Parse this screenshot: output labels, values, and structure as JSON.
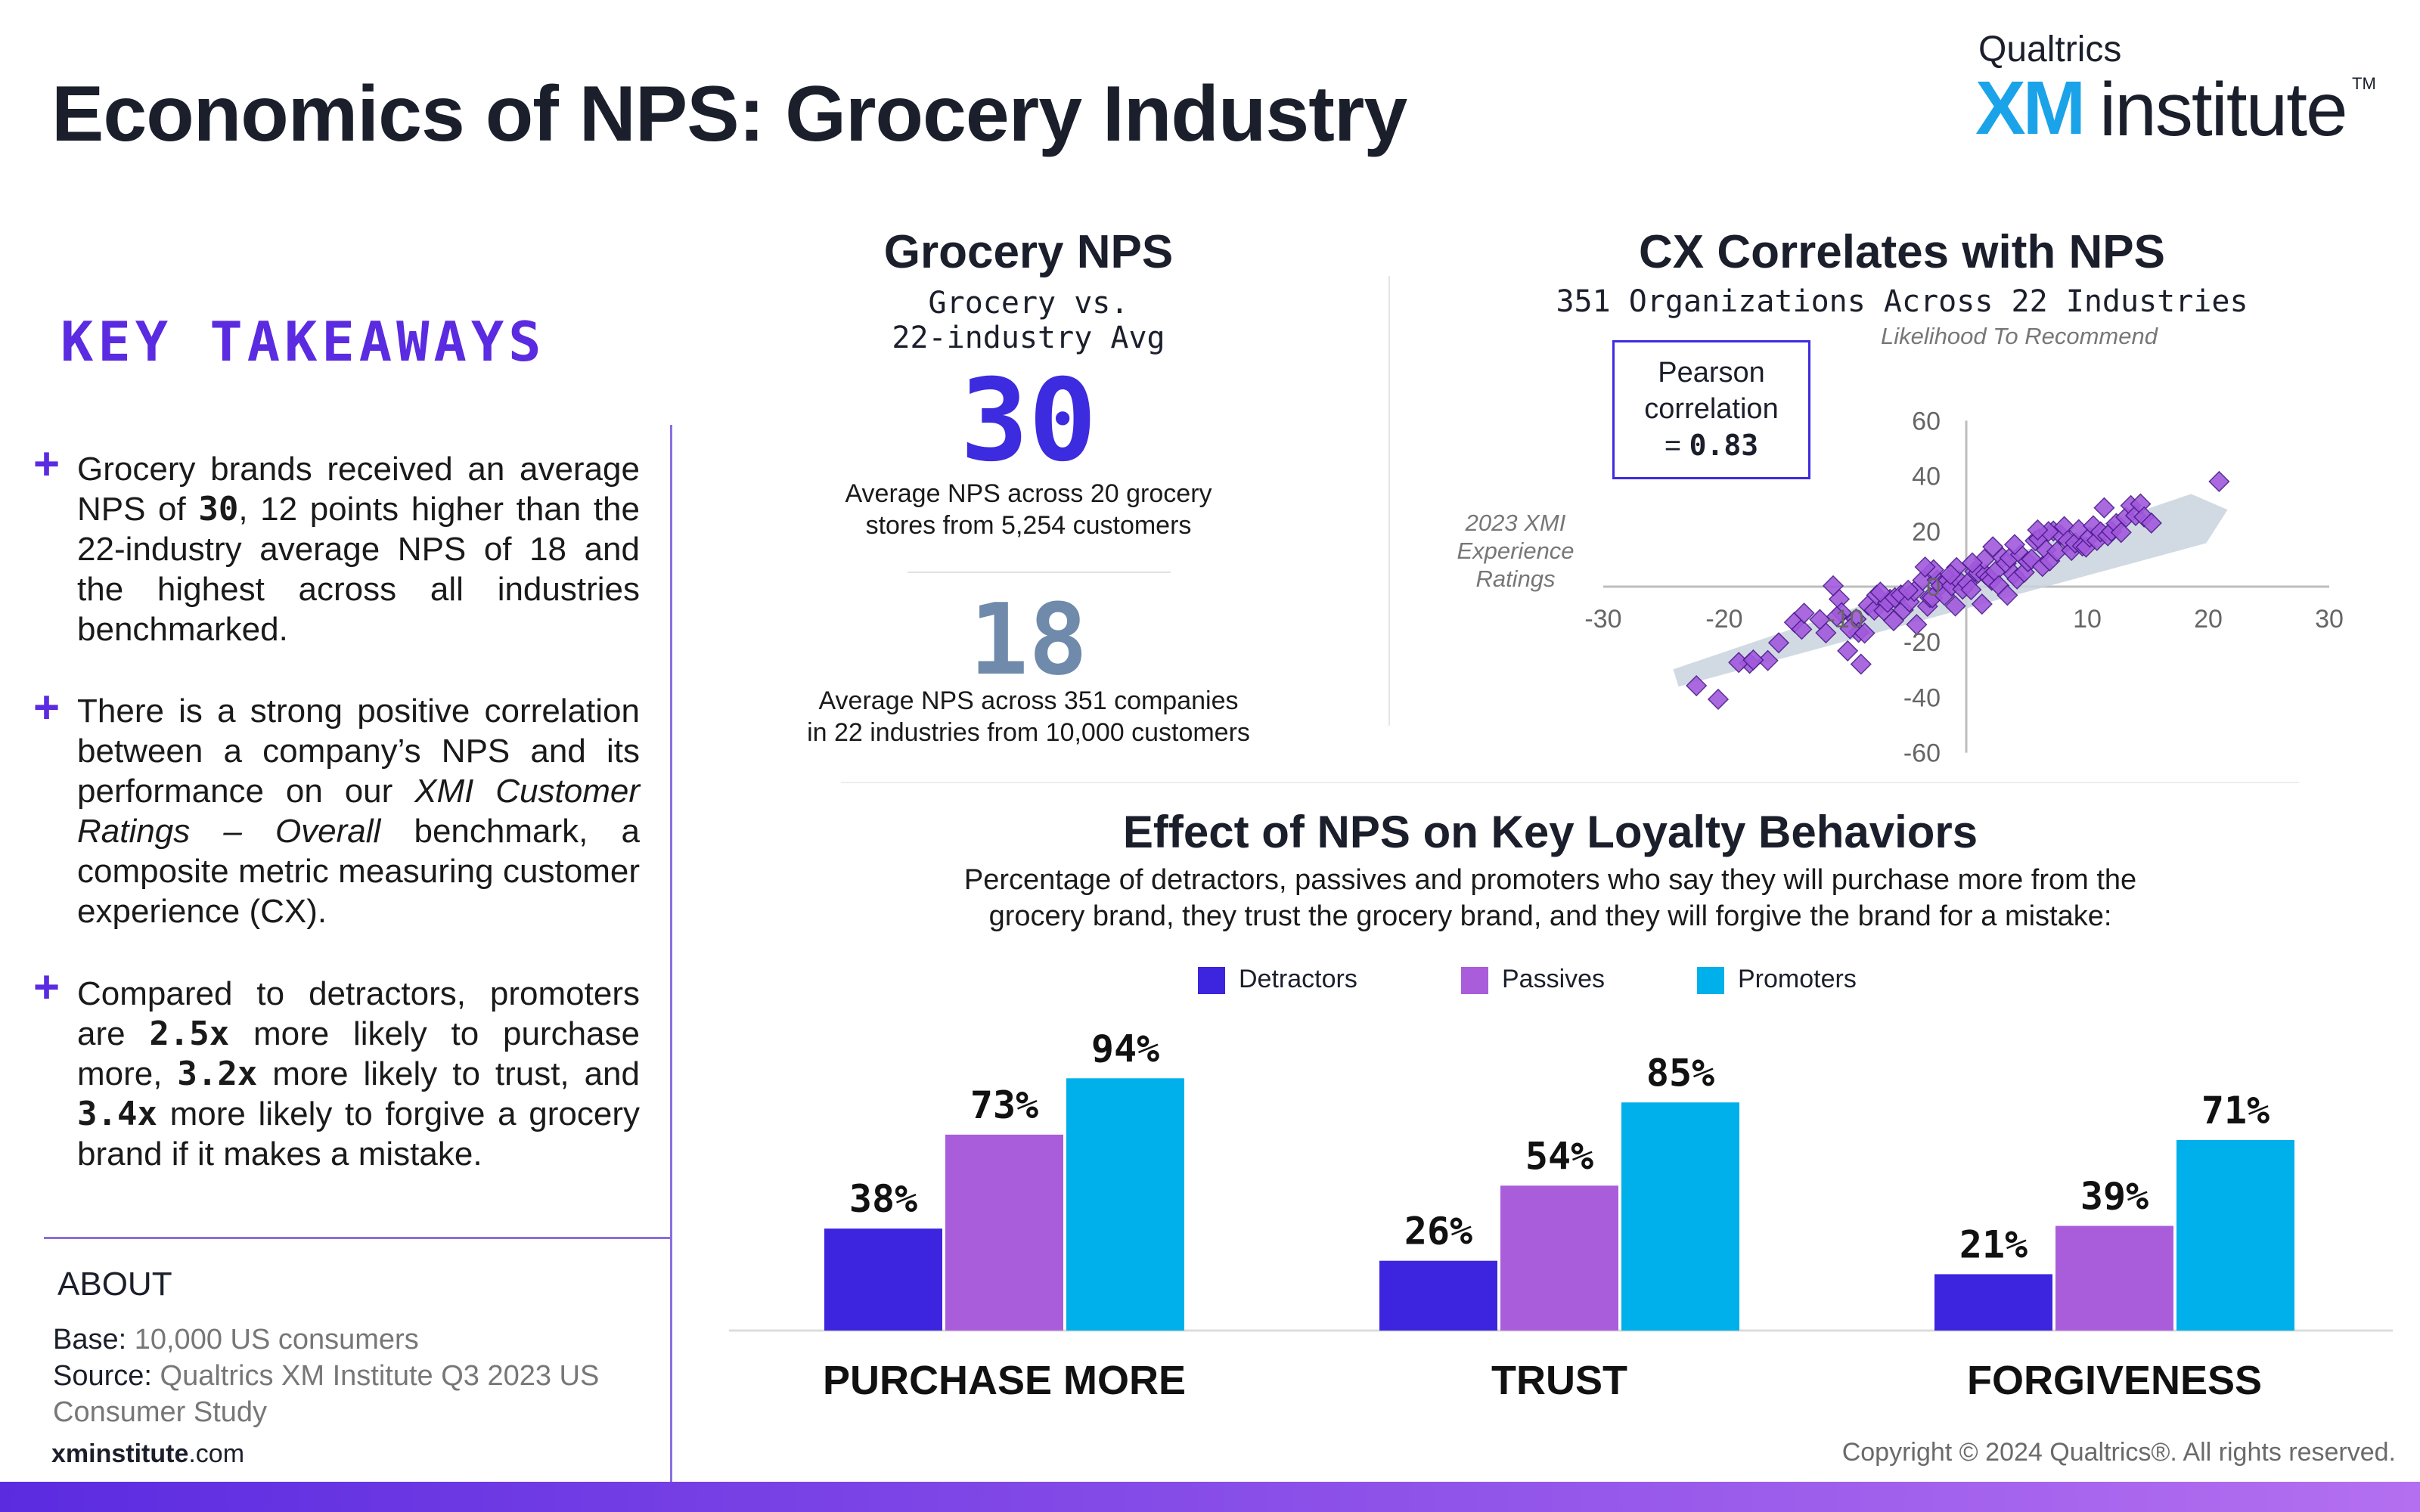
{
  "page": {
    "title": "Economics of NPS: Grocery Industry",
    "logo": {
      "top": "Qualtrics",
      "xm": "XM",
      "institute": "institute",
      "tm": "TM"
    },
    "site_bold": "xminstitute",
    "site_rest": ".com",
    "copyright": "Copyright © 2024 Qualtrics®. All rights reserved."
  },
  "takeaways": {
    "title": "KEY TAKEAWAYS",
    "item1": {
      "a": "Grocery brands received an average NPS of ",
      "b": "30",
      "c": ", 12 points higher than the 22-industry average NPS of 18 and the highest across all industries benchmarked."
    },
    "item2": {
      "a": " There is a strong positive correlation between a company’s NPS and its performance on our ",
      "i": "XMI Customer Ratings – Overall",
      "c": " benchmark, a composite metric measuring customer experience (CX)."
    },
    "item3": {
      "a": "Compared to detractors, promoters are ",
      "b1": "2.5x",
      "c": " more likely to purchase more, ",
      "b2": "3.2x",
      "d": " more likely to trust, and ",
      "b3": "3.4x",
      "e": " more likely to forgive a grocery brand if it makes a mistake."
    }
  },
  "about": {
    "title": "ABOUT",
    "base_label": "Base:",
    "base_value": " 10,000 US consumers",
    "source_label": "Source:",
    "source_value": " Qualtrics XM Institute Q3 2023 US Consumer Study"
  },
  "grocery_nps": {
    "title": "Grocery NPS",
    "subtitle_line1": "Grocery vs.",
    "subtitle_line2": "22-industry Avg",
    "value": "30",
    "value_desc_line1": "Average NPS across 20 grocery",
    "value_desc_line2": "stores from 5,254 customers",
    "avg": "18",
    "avg_desc_line1": "Average NPS across 351 companies",
    "avg_desc_line2": "in 22 industries from 10,000 customers"
  },
  "cx": {
    "title": "CX Correlates with NPS",
    "subtitle": "351 Organizations Across 22 Industries",
    "pearson_line1": "Pearson",
    "pearson_line2": "correlation",
    "pearson_prefix": "= ",
    "pearson_value": "0.83"
  },
  "loyalty": {
    "title": "Effect of NPS on Key Loyalty Behaviors",
    "subtitle_line1": "Percentage of detractors, passives and promoters who say they will purchase more from the",
    "subtitle_line2": "grocery brand, they trust the grocery brand, and they will forgive the brand for a mistake:"
  },
  "colors": {
    "detractors": "#3d24de",
    "passives": "#a95ddb",
    "promoters": "#00b0ea",
    "scatter_point": "#a259dd",
    "scatter_edge": "#4a1b8c",
    "title": "#1b1f2b",
    "accent": "#5a2be0"
  },
  "chart_data": [
    {
      "type": "scatter",
      "title": "CX Correlates with NPS",
      "subtitle": "351 Organizations Across 22 Industries",
      "xlabel": "2023 XMI Experience Ratings",
      "ylabel": "Likelihood To Recommend",
      "xlim": [
        -30,
        30
      ],
      "ylim": [
        -60,
        60
      ],
      "xticks": [
        -30,
        -20,
        -10,
        10,
        20,
        30
      ],
      "yticks": [
        60,
        40,
        20,
        0,
        -20,
        -40,
        -60
      ],
      "trendline": {
        "x": [
          -24,
          21
        ],
        "y": [
          -33,
          27
        ]
      },
      "points": [
        [
          -22.3,
          -35.8
        ],
        [
          -20.5,
          -40.7
        ],
        [
          -17.9,
          -27.7
        ],
        [
          -16.4,
          -26.7
        ],
        [
          -18.8,
          -27.4
        ],
        [
          -17.6,
          -26.5
        ],
        [
          -15.5,
          -20.3
        ],
        [
          -14.2,
          -12.9
        ],
        [
          -13.6,
          -15.4
        ],
        [
          -11.6,
          -16.7
        ],
        [
          -12.1,
          -11.9
        ],
        [
          -10.5,
          -4.5
        ],
        [
          -9.8,
          -23.2
        ],
        [
          -10.3,
          -9.4
        ],
        [
          -9.1,
          -11.7
        ],
        [
          -8.9,
          -16.5
        ],
        [
          -9.6,
          -15.2
        ],
        [
          -10.7,
          -10.8
        ],
        [
          -8.1,
          -6.7
        ],
        [
          -8.4,
          -16.8
        ],
        [
          -7.6,
          -8.5
        ],
        [
          -7.4,
          -3.1
        ],
        [
          -6.8,
          -8.7
        ],
        [
          -6.3,
          -4.6
        ],
        [
          -6.5,
          -5.7
        ],
        [
          -5.9,
          -4.0
        ],
        [
          -5.4,
          -3.0
        ],
        [
          -5.2,
          -8.4
        ],
        [
          -4.7,
          -5.5
        ],
        [
          -4.3,
          -1.7
        ],
        [
          -4.1,
          -13.7
        ],
        [
          -3.6,
          2.3
        ],
        [
          -3.2,
          -7.1
        ],
        [
          -3.0,
          -3.9
        ],
        [
          -2.8,
          -4.0
        ],
        [
          -2.4,
          2.4
        ],
        [
          -2.1,
          0.4
        ],
        [
          -1.8,
          -3.1
        ],
        [
          -1.5,
          2.3
        ],
        [
          -1.2,
          0.3
        ],
        [
          -0.9,
          -7.0
        ],
        [
          -0.6,
          2.2
        ],
        [
          -0.3,
          -0.9
        ],
        [
          0.1,
          1.2
        ],
        [
          0.4,
          -1.1
        ],
        [
          0.7,
          5.5
        ],
        [
          1.0,
          5.0
        ],
        [
          1.3,
          -6.3
        ],
        [
          1.6,
          4.4
        ],
        [
          1.9,
          3.3
        ],
        [
          2.1,
          2.3
        ],
        [
          2.4,
          5.4
        ],
        [
          2.7,
          0.4
        ],
        [
          3.0,
          10.5
        ],
        [
          3.3,
          8.4
        ],
        [
          3.6,
          10.4
        ],
        [
          3.9,
          4.5
        ],
        [
          4.2,
          2.8
        ],
        [
          4.5,
          11.6
        ],
        [
          4.8,
          5.2
        ],
        [
          5.1,
          9.0
        ],
        [
          5.4,
          9.9
        ],
        [
          5.7,
          16.6
        ],
        [
          6.0,
          17.3
        ],
        [
          6.3,
          7.3
        ],
        [
          6.6,
          13.3
        ],
        [
          6.9,
          9.3
        ],
        [
          7.2,
          20.1
        ],
        [
          7.5,
          12.7
        ],
        [
          7.8,
          18.8
        ],
        [
          8.1,
          21.7
        ],
        [
          8.4,
          16.7
        ],
        [
          8.7,
          13.1
        ],
        [
          9.0,
          15.8
        ],
        [
          9.3,
          20.6
        ],
        [
          9.6,
          14.7
        ],
        [
          9.9,
          14.3
        ],
        [
          10.2,
          17.9
        ],
        [
          10.5,
          22.0
        ],
        [
          10.8,
          16.7
        ],
        [
          11.1,
          19.8
        ],
        [
          11.4,
          28.5
        ],
        [
          11.7,
          18.4
        ],
        [
          12.0,
          20.0
        ],
        [
          12.4,
          22.8
        ],
        [
          12.8,
          19.6
        ],
        [
          13.2,
          25.1
        ],
        [
          13.6,
          29.3
        ],
        [
          14.0,
          25.7
        ],
        [
          14.4,
          29.9
        ],
        [
          14.7,
          25.2
        ],
        [
          15.3,
          23.0
        ],
        [
          20.9,
          38.0
        ],
        [
          -8.7,
          -28.0
        ],
        [
          -13.4,
          -9.6
        ],
        [
          -11.0,
          0.3
        ],
        [
          -4.8,
          -1.3
        ],
        [
          1.5,
          9.9
        ],
        [
          3.4,
          -3.1
        ],
        [
          6.8,
          19.9
        ],
        [
          -2.7,
          6.1
        ],
        [
          -6.0,
          -12.3
        ],
        [
          0.5,
          8.6
        ],
        [
          2.2,
          14.4
        ],
        [
          -0.8,
          6.9
        ],
        [
          4.0,
          15.2
        ],
        [
          -7.1,
          -2.0
        ],
        [
          -3.4,
          7.1
        ],
        [
          5.9,
          20.5
        ],
        [
          -1.3,
          4.4
        ]
      ]
    },
    {
      "type": "bar",
      "title": "Effect of NPS on Key Loyalty Behaviors",
      "categories": [
        "PURCHASE MORE",
        "TRUST",
        "FORGIVENESS"
      ],
      "series": [
        {
          "name": "Detractors",
          "values": [
            38,
            26,
            21
          ]
        },
        {
          "name": "Passives",
          "values": [
            73,
            54,
            39
          ]
        },
        {
          "name": "Promoters",
          "values": [
            94,
            85,
            71
          ]
        }
      ],
      "value_suffix": "%",
      "ylim": [
        0,
        100
      ]
    }
  ]
}
